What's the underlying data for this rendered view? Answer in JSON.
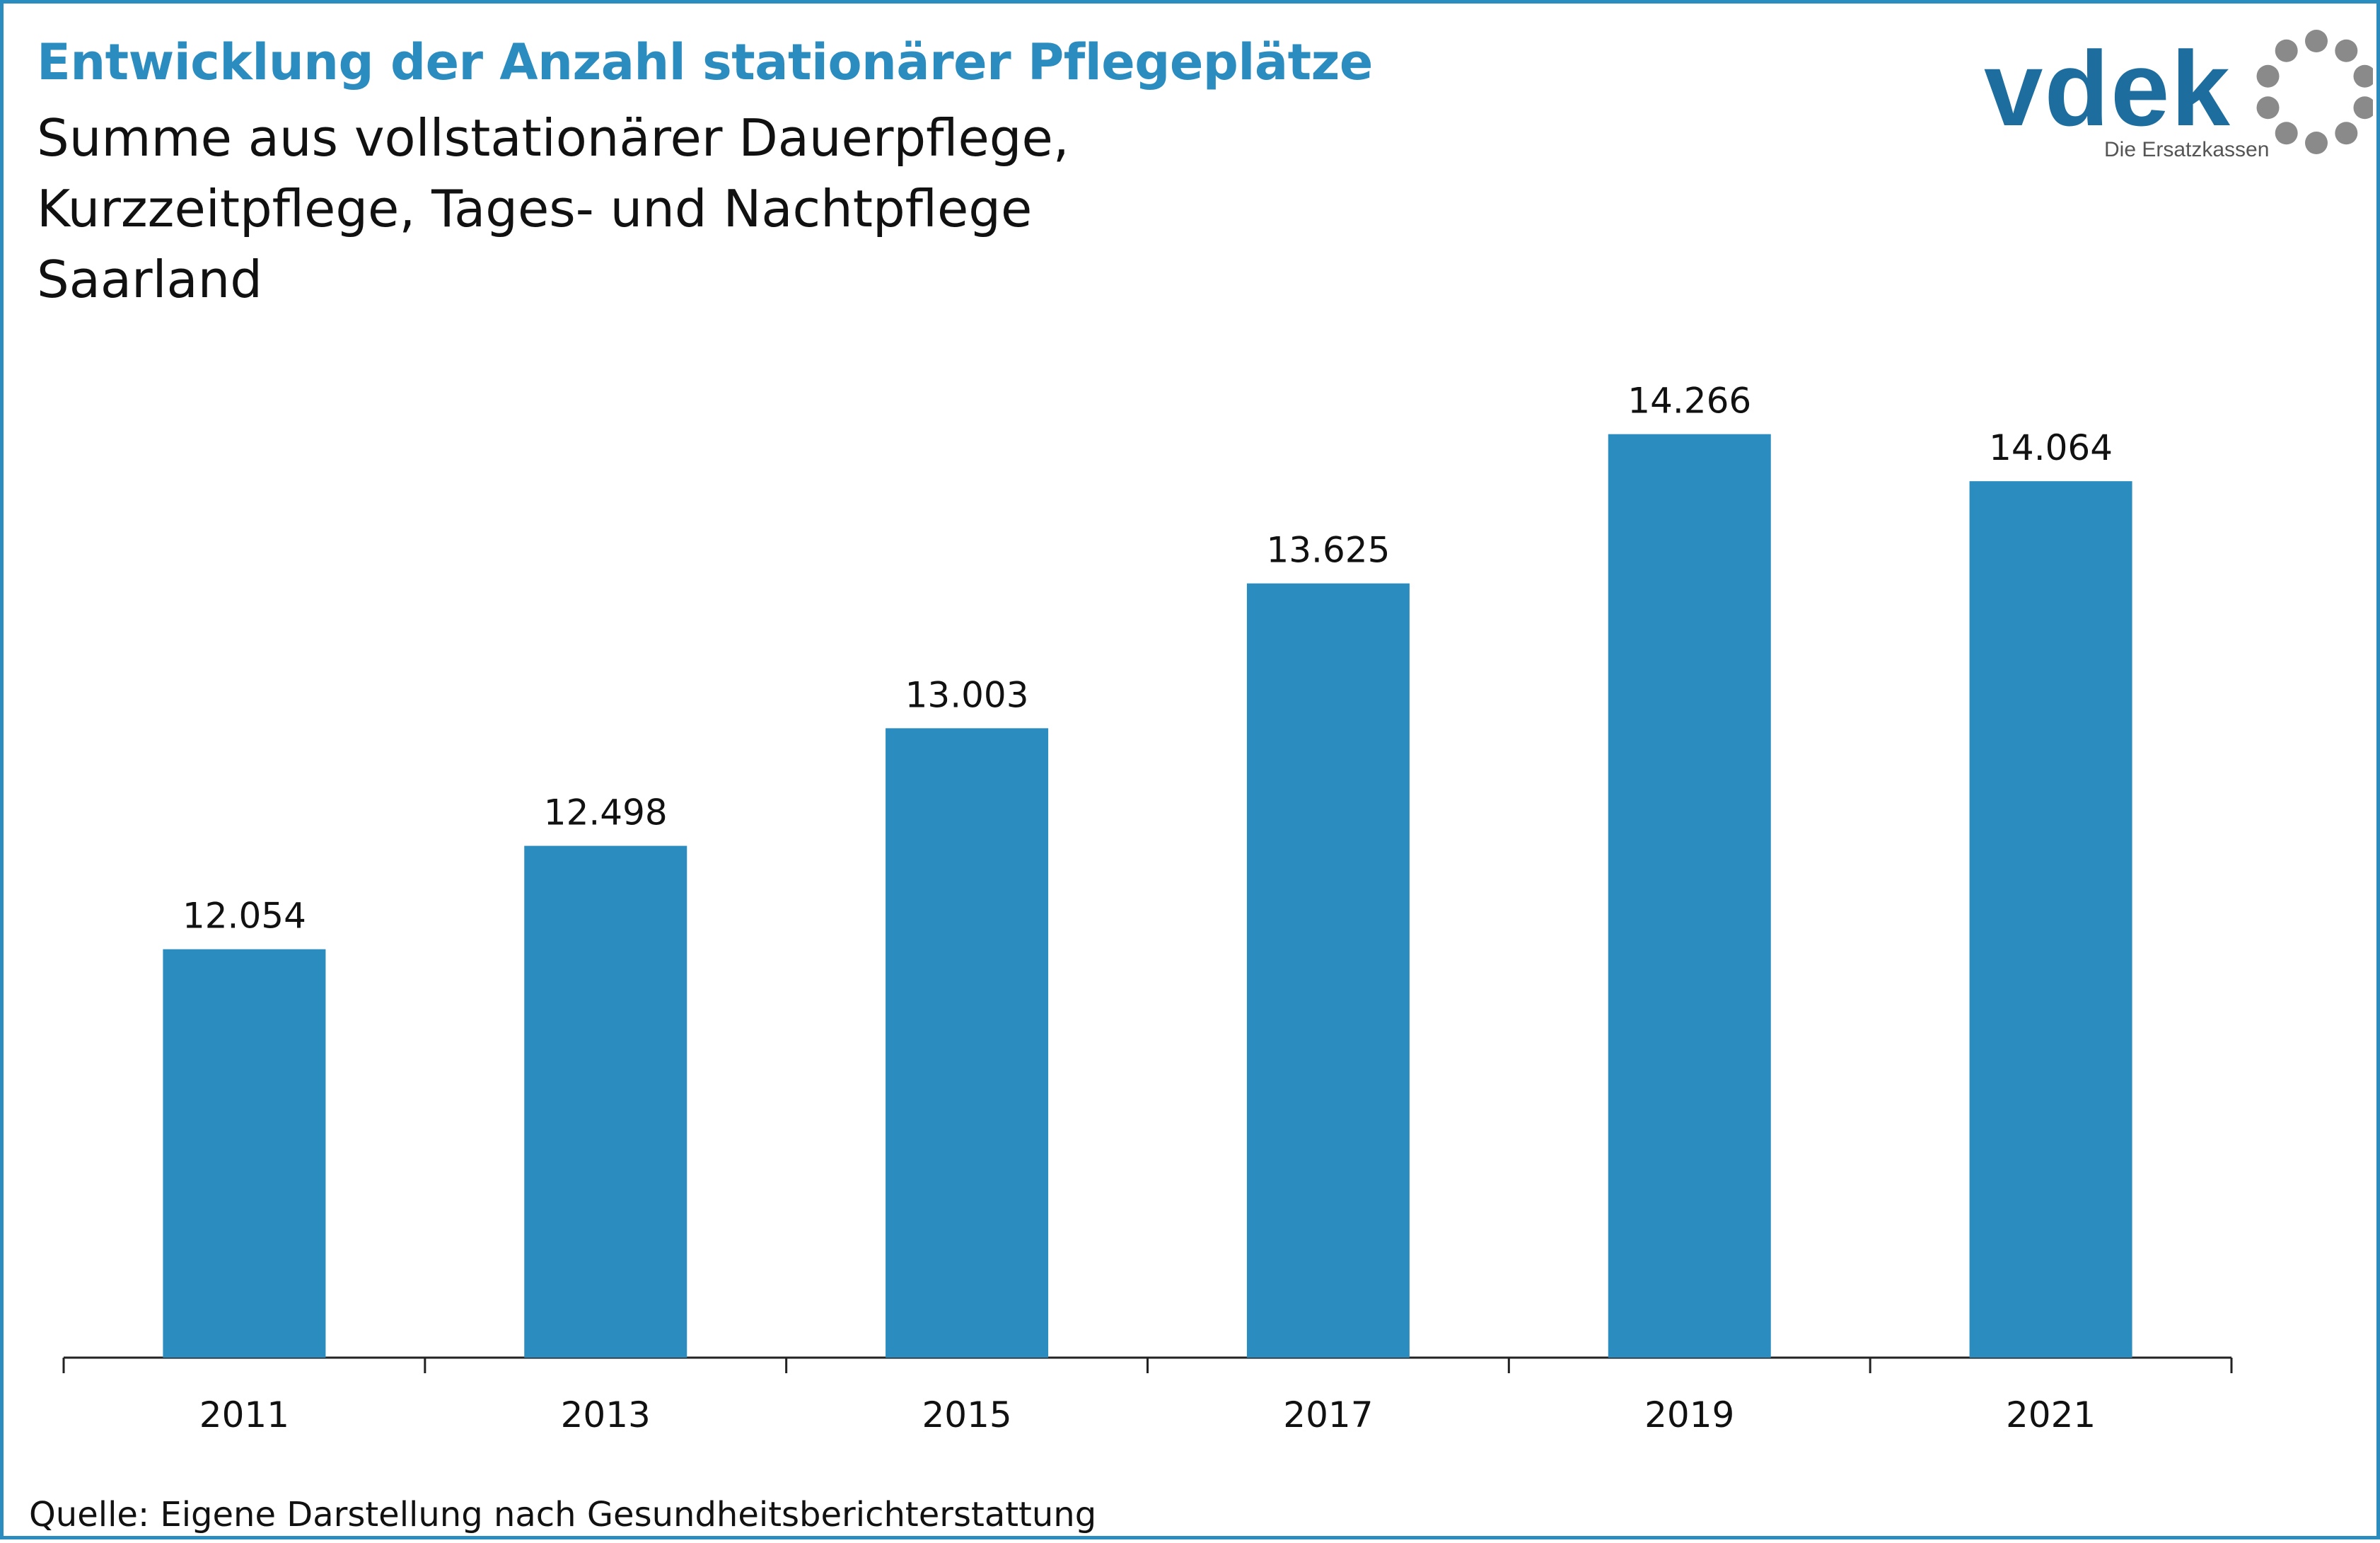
{
  "header": {
    "title": "Entwicklung der Anzahl stationärer Pflegeplätze",
    "subtitle_lines": [
      "Summe aus vollstationärer Dauerpflege,",
      "Kurzzeitpflege, Tages- und Nachtpflege",
      "Saarland"
    ]
  },
  "logo": {
    "wordmark": "vdek",
    "tagline": "Die Ersatzkassen",
    "icon": "dotted-ring-icon"
  },
  "chart_data": {
    "type": "bar",
    "title": "Entwicklung der Anzahl stationärer Pflegeplätze",
    "categories": [
      "2011",
      "2013",
      "2015",
      "2017",
      "2019",
      "2021"
    ],
    "values": [
      12054,
      12498,
      13003,
      13625,
      14266,
      14064
    ],
    "value_labels": [
      "12.054",
      "12.498",
      "13.003",
      "13.625",
      "14.266",
      "14.064"
    ],
    "ylim": [
      10300,
      14900
    ],
    "grid": false,
    "legend": "none",
    "xlabel": "",
    "ylabel": ""
  },
  "footer": {
    "source": "Quelle: Eigene Darstellung nach Gesundheitsberichterstattung"
  },
  "colors": {
    "accent": "#2b8cc0",
    "bar": "#2b8cc0",
    "logo_blue": "#1d6e9e",
    "logo_gray": "#8a8a8a",
    "text": "#111111"
  }
}
